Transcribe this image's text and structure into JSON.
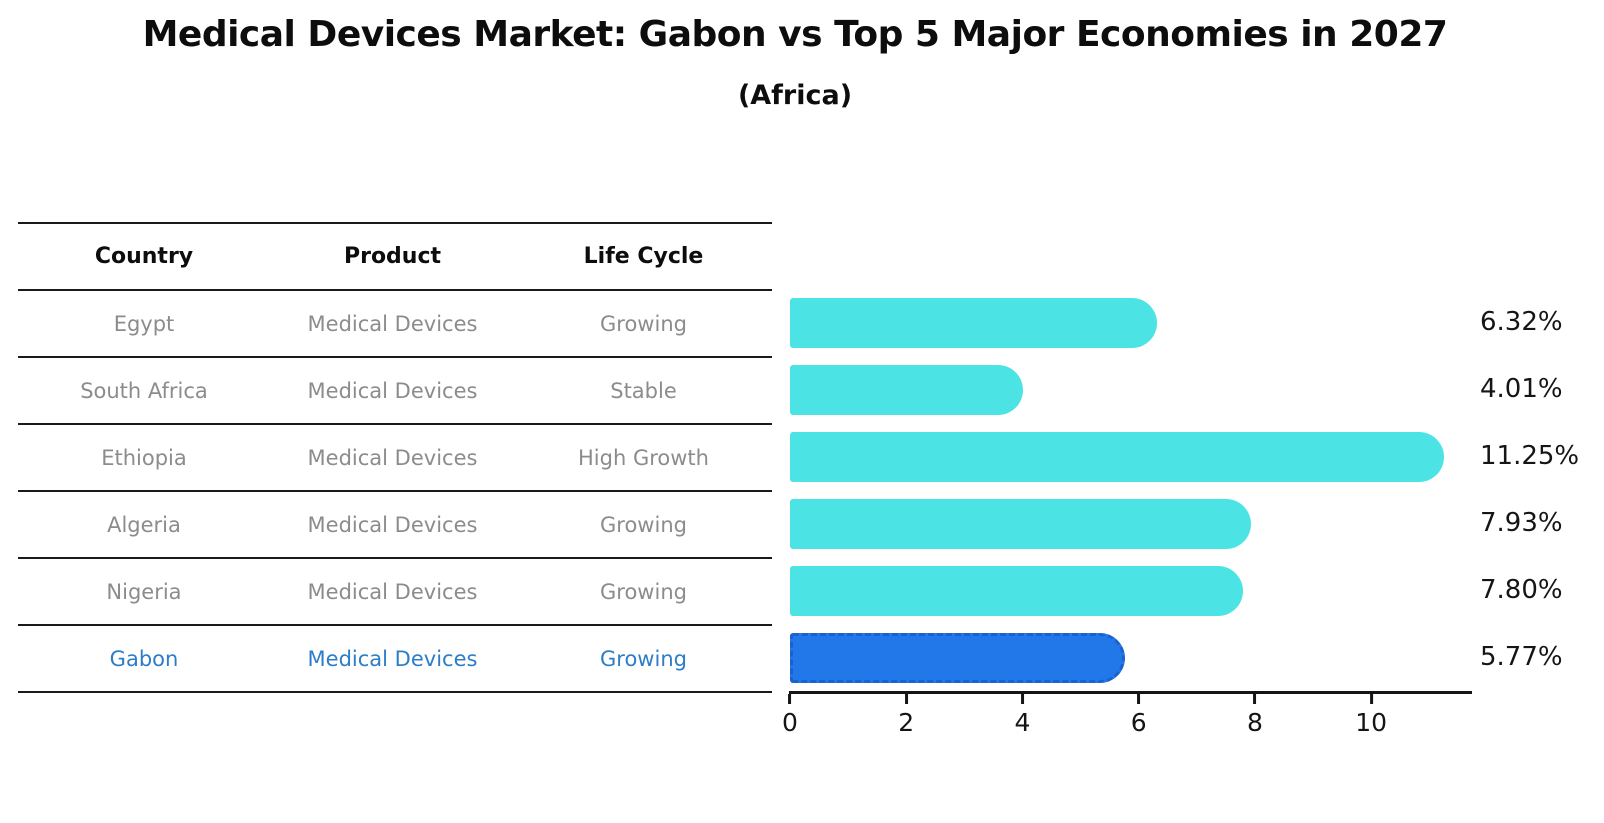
{
  "title": "Medical Devices Market: Gabon vs Top 5 Major Economies in 2027",
  "subtitle": "(Africa)",
  "table": {
    "headers": [
      "Country",
      "Product",
      "Life Cycle"
    ],
    "rows": [
      {
        "country": "Egypt",
        "product": "Medical Devices",
        "life_cycle": "Growing",
        "highlight": false
      },
      {
        "country": "South Africa",
        "product": "Medical Devices",
        "life_cycle": "Stable",
        "highlight": false
      },
      {
        "country": "Ethiopia",
        "product": "Medical Devices",
        "life_cycle": "High Growth",
        "highlight": false
      },
      {
        "country": "Algeria",
        "product": "Medical Devices",
        "life_cycle": "Growing",
        "highlight": false
      },
      {
        "country": "Nigeria",
        "product": "Medical Devices",
        "life_cycle": "Growing",
        "highlight": false
      },
      {
        "country": "Gabon",
        "product": "Medical Devices",
        "life_cycle": "Growing",
        "highlight": true
      }
    ]
  },
  "chart_data": {
    "type": "bar",
    "orientation": "horizontal",
    "categories": [
      "Egypt",
      "South Africa",
      "Ethiopia",
      "Algeria",
      "Nigeria",
      "Gabon"
    ],
    "values": [
      6.32,
      4.01,
      11.25,
      7.93,
      7.8,
      5.77
    ],
    "value_labels": [
      "6.32%",
      "4.01%",
      "11.25%",
      "7.93%",
      "7.80%",
      "5.77%"
    ],
    "x_ticks": [
      0,
      2,
      4,
      6,
      8,
      10
    ],
    "xlim": [
      0,
      11.7
    ],
    "grid": false,
    "legend": null,
    "bar_color": "#4BE3E3",
    "highlight_index": 5,
    "highlight_fill": "#2278E8",
    "highlight_border": "#1A63CF",
    "highlight_text_color": "#2E7DC8",
    "axis_color": "#151515"
  }
}
